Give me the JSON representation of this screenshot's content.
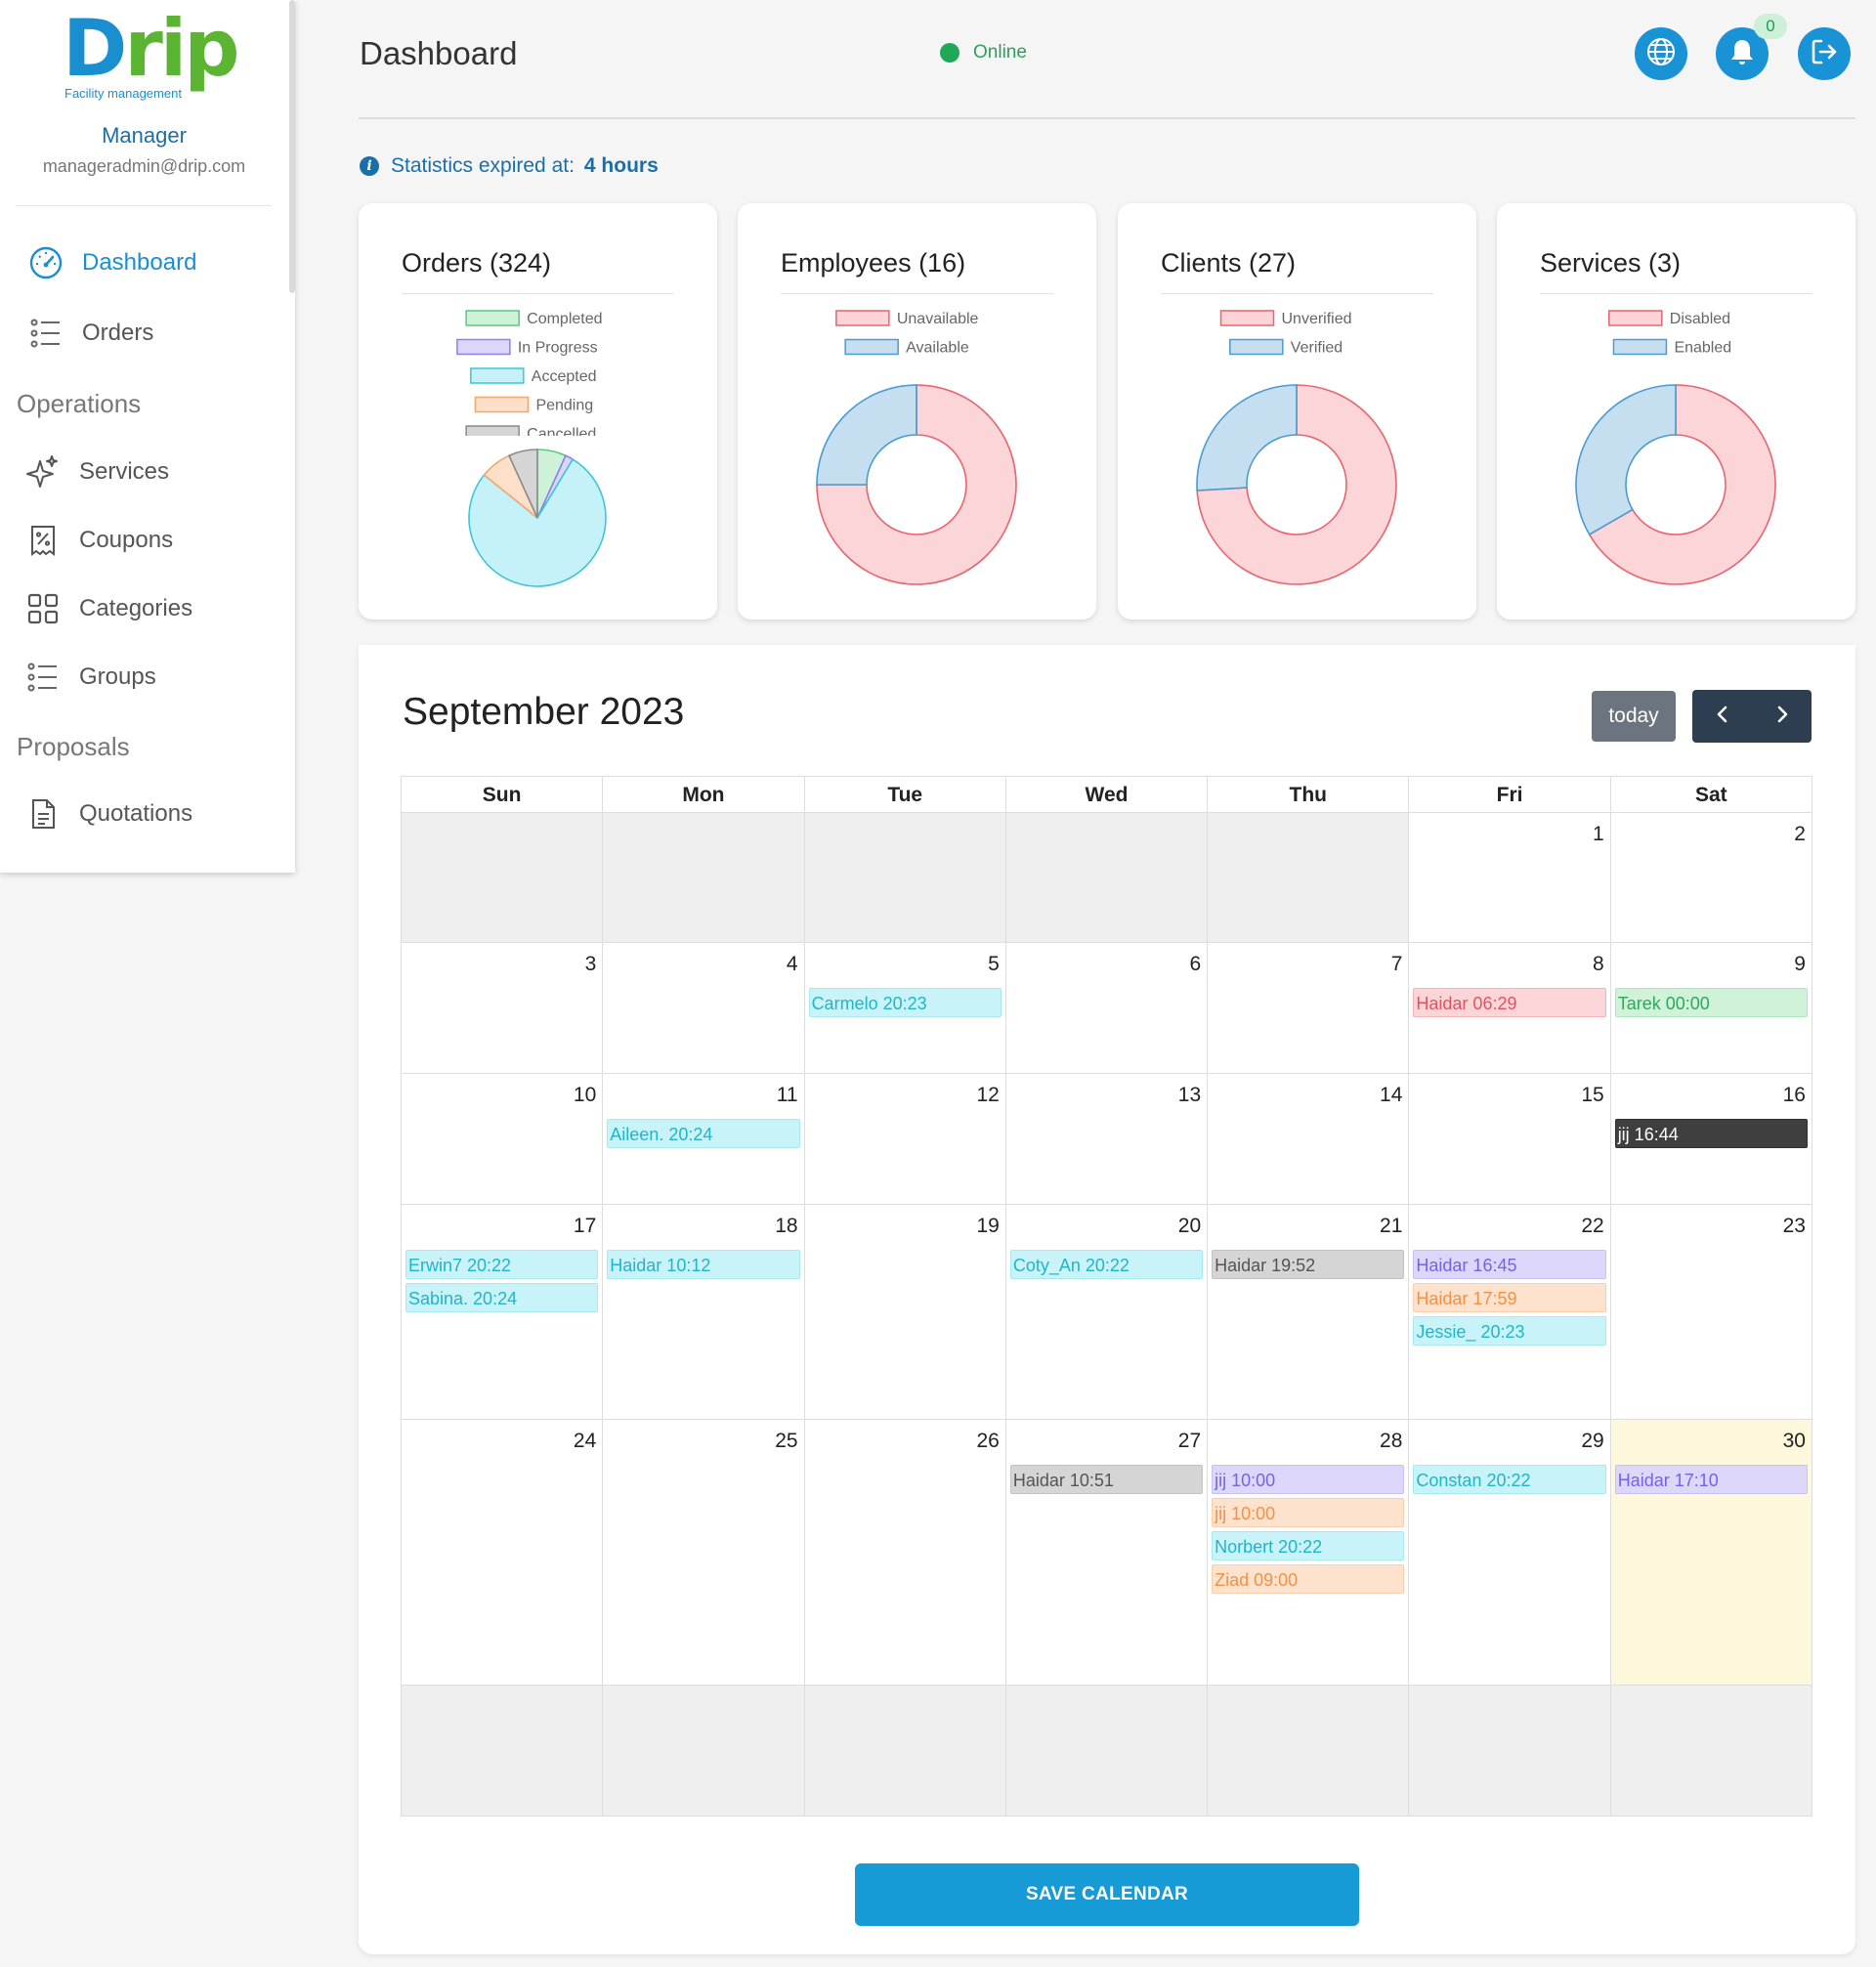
{
  "app": {
    "logo_word_d": "D",
    "logo_word_rest": "rip",
    "logo_tagline": "Facility management",
    "brand_blue": "#1a8fd0",
    "brand_green": "#5bb533"
  },
  "sidebar": {
    "role": "Manager",
    "email": "manageradmin@drip.com",
    "items": [
      {
        "label": "Dashboard",
        "icon": "gauge-icon",
        "active": true
      },
      {
        "label": "Orders",
        "icon": "list-icon"
      }
    ],
    "sections": [
      {
        "title": "Operations",
        "items": [
          {
            "label": "Services",
            "icon": "sparkles-icon"
          },
          {
            "label": "Coupons",
            "icon": "receipt-percent-icon"
          },
          {
            "label": "Categories",
            "icon": "grid-icon"
          },
          {
            "label": "Groups",
            "icon": "list-icon"
          }
        ]
      },
      {
        "title": "Proposals",
        "items": [
          {
            "label": "Quotations",
            "icon": "document-icon"
          }
        ]
      }
    ]
  },
  "header": {
    "title": "Dashboard",
    "status": "Online",
    "notification_count": "0",
    "icons": [
      "globe-icon",
      "bell-icon",
      "logout-icon"
    ]
  },
  "stats": {
    "label": "Statistics expired at:",
    "value": "4 hours"
  },
  "cards": [
    {
      "title": "Orders (324)"
    },
    {
      "title": "Employees (16)"
    },
    {
      "title": "Clients (27)"
    },
    {
      "title": "Services (3)"
    }
  ],
  "chart_data": [
    {
      "type": "pie",
      "legend": [
        "Completed",
        "In Progress",
        "Accepted",
        "Pending",
        "Cancelled"
      ],
      "values": [
        22,
        6,
        250,
        24,
        22
      ],
      "colors": [
        "#cdf2d8",
        "#dcd6fb",
        "#c5f2f8",
        "#fde0c9",
        "#d5d5d5"
      ],
      "borders": [
        "#59c97c",
        "#8d7ff0",
        "#3fc5d8",
        "#f5a66b",
        "#8a8a8a"
      ],
      "legend_position": "top"
    },
    {
      "type": "doughnut",
      "legend": [
        "Unavailable",
        "Available"
      ],
      "values": [
        12,
        4
      ],
      "colors": [
        "#fbd5d8",
        "#c6dff0"
      ],
      "borders": [
        "#e8646f",
        "#4a9bd0"
      ],
      "legend_position": "top"
    },
    {
      "type": "doughnut",
      "legend": [
        "Unverified",
        "Verified"
      ],
      "values": [
        20,
        7
      ],
      "colors": [
        "#fbd5d8",
        "#c6dff0"
      ],
      "borders": [
        "#e8646f",
        "#4a9bd0"
      ],
      "legend_position": "top"
    },
    {
      "type": "doughnut",
      "legend": [
        "Disabled",
        "Enabled"
      ],
      "values": [
        2,
        1
      ],
      "colors": [
        "#fbd5d8",
        "#c6dff0"
      ],
      "borders": [
        "#e8646f",
        "#4a9bd0"
      ],
      "legend_position": "top"
    }
  ],
  "calendar": {
    "title": "September 2023",
    "today_label": "today",
    "weekdays": [
      "Sun",
      "Mon",
      "Tue",
      "Wed",
      "Thu",
      "Fri",
      "Sat"
    ],
    "weeks": [
      [
        {
          "d": "",
          "other": true
        },
        {
          "d": "",
          "other": true
        },
        {
          "d": "",
          "other": true
        },
        {
          "d": "",
          "other": true
        },
        {
          "d": "",
          "other": true
        },
        {
          "d": "1"
        },
        {
          "d": "2"
        }
      ],
      [
        {
          "d": "3"
        },
        {
          "d": "4"
        },
        {
          "d": "5",
          "events": [
            {
              "t": "Carmelo 20:23",
              "c": "cyan"
            }
          ]
        },
        {
          "d": "6"
        },
        {
          "d": "7"
        },
        {
          "d": "8",
          "events": [
            {
              "t": "Haidar 06:29",
              "c": "red"
            }
          ]
        },
        {
          "d": "9",
          "events": [
            {
              "t": "Tarek 00:00",
              "c": "green"
            }
          ]
        }
      ],
      [
        {
          "d": "10"
        },
        {
          "d": "11",
          "events": [
            {
              "t": "Aileen. 20:24",
              "c": "cyan"
            }
          ]
        },
        {
          "d": "12"
        },
        {
          "d": "13"
        },
        {
          "d": "14"
        },
        {
          "d": "15"
        },
        {
          "d": "16",
          "events": [
            {
              "t": "jij 16:44",
              "c": "dark"
            }
          ]
        }
      ],
      [
        {
          "d": "17",
          "events": [
            {
              "t": "Erwin7 20:22",
              "c": "cyan"
            },
            {
              "t": "Sabina. 20:24",
              "c": "cyan"
            }
          ]
        },
        {
          "d": "18",
          "events": [
            {
              "t": "Haidar 10:12",
              "c": "cyan"
            }
          ]
        },
        {
          "d": "19"
        },
        {
          "d": "20",
          "events": [
            {
              "t": "Coty_An 20:22",
              "c": "cyan"
            }
          ]
        },
        {
          "d": "21",
          "events": [
            {
              "t": "Haidar 19:52",
              "c": "gray"
            }
          ]
        },
        {
          "d": "22",
          "events": [
            {
              "t": "Haidar 16:45",
              "c": "purple"
            },
            {
              "t": "Haidar 17:59",
              "c": "orange"
            },
            {
              "t": "Jessie_ 20:23",
              "c": "cyan"
            }
          ]
        },
        {
          "d": "23"
        }
      ],
      [
        {
          "d": "24"
        },
        {
          "d": "25"
        },
        {
          "d": "26"
        },
        {
          "d": "27",
          "events": [
            {
              "t": "Haidar 10:51",
              "c": "gray"
            }
          ]
        },
        {
          "d": "28",
          "events": [
            {
              "t": "jij 10:00",
              "c": "purple"
            },
            {
              "t": "jij 10:00",
              "c": "orange"
            },
            {
              "t": "Norbert 20:22",
              "c": "cyan"
            },
            {
              "t": "Ziad 09:00",
              "c": "orange"
            }
          ]
        },
        {
          "d": "29",
          "events": [
            {
              "t": "Constan 20:22",
              "c": "cyan"
            }
          ]
        },
        {
          "d": "30",
          "today": true,
          "events": [
            {
              "t": "Haidar 17:10",
              "c": "purple"
            }
          ]
        }
      ],
      [
        {
          "d": "",
          "other": true
        },
        {
          "d": "",
          "other": true
        },
        {
          "d": "",
          "other": true
        },
        {
          "d": "",
          "other": true
        },
        {
          "d": "",
          "other": true
        },
        {
          "d": "",
          "other": true
        },
        {
          "d": "",
          "other": true
        }
      ]
    ],
    "save_label": "SAVE CALENDAR"
  }
}
